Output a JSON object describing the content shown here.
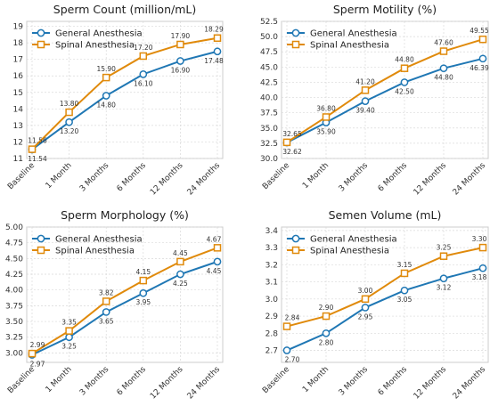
{
  "chart_data": [
    {
      "type": "line",
      "title": "Sperm Count (million/mL)",
      "xlabel": "",
      "ylabel": "",
      "categories": [
        "Baseline",
        "1 Month",
        "3 Months",
        "6 Months",
        "12 Months",
        "24 Months"
      ],
      "ylim": [
        11,
        19.3
      ],
      "yticks": [
        "11",
        "12",
        "13",
        "14",
        "15",
        "16",
        "17",
        "18",
        "19"
      ],
      "grid": true,
      "legend": "upper-left",
      "series": [
        {
          "name": "General Anesthesia",
          "color": "#1f77b4",
          "marker": "circle",
          "values": [
            11.54,
            13.2,
            14.8,
            16.1,
            16.9,
            17.48
          ],
          "labels": [
            "11.54",
            "13.20",
            "14.80",
            "16.10",
            "16.90",
            "17.48"
          ],
          "label_position": "below"
        },
        {
          "name": "Spinal Anesthesia",
          "color": "#e08a0b",
          "marker": "square",
          "values": [
            11.56,
            13.8,
            15.9,
            17.2,
            17.9,
            18.29
          ],
          "labels": [
            "11.56",
            "13.80",
            "15.90",
            "17.20",
            "17.90",
            "18.29"
          ],
          "label_position": "above"
        }
      ]
    },
    {
      "type": "line",
      "title": "Sperm Motility (%)",
      "xlabel": "",
      "ylabel": "",
      "categories": [
        "Baseline",
        "1 Month",
        "3 Months",
        "6 Months",
        "12 Months",
        "24 Months"
      ],
      "ylim": [
        30,
        52.5
      ],
      "yticks": [
        "30.0",
        "32.5",
        "35.0",
        "37.5",
        "40.0",
        "42.5",
        "45.0",
        "47.5",
        "50.0",
        "52.5"
      ],
      "grid": true,
      "legend": "upper-left",
      "series": [
        {
          "name": "General Anesthesia",
          "color": "#1f77b4",
          "marker": "circle",
          "values": [
            32.62,
            35.9,
            39.4,
            42.5,
            44.8,
            46.39
          ],
          "labels": [
            "32.62",
            "35.90",
            "39.40",
            "42.50",
            "44.80",
            "46.39"
          ],
          "label_position": "below"
        },
        {
          "name": "Spinal Anesthesia",
          "color": "#e08a0b",
          "marker": "square",
          "values": [
            32.65,
            36.8,
            41.2,
            44.8,
            47.6,
            49.55
          ],
          "labels": [
            "32.65",
            "36.80",
            "41.20",
            "44.80",
            "47.60",
            "49.55"
          ],
          "label_position": "above"
        }
      ]
    },
    {
      "type": "line",
      "title": "Sperm Morphology (%)",
      "xlabel": "",
      "ylabel": "",
      "categories": [
        "Baseline",
        "1 Month",
        "3 Months",
        "6 Months",
        "12 Months",
        "24 Months"
      ],
      "ylim": [
        2.85,
        5.0
      ],
      "yticks": [
        "3.00",
        "3.25",
        "3.50",
        "3.75",
        "4.00",
        "4.25",
        "4.50",
        "4.75",
        "5.00"
      ],
      "grid": true,
      "legend": "upper-left",
      "series": [
        {
          "name": "General Anesthesia",
          "color": "#1f77b4",
          "marker": "circle",
          "values": [
            2.97,
            3.25,
            3.65,
            3.95,
            4.25,
            4.45
          ],
          "labels": [
            "2.97",
            "3.25",
            "3.65",
            "3.95",
            "4.25",
            "4.45"
          ],
          "label_position": "below"
        },
        {
          "name": "Spinal Anesthesia",
          "color": "#e08a0b",
          "marker": "square",
          "values": [
            2.99,
            3.35,
            3.82,
            4.15,
            4.45,
            4.67
          ],
          "labels": [
            "2.99",
            "3.35",
            "3.82",
            "4.15",
            "4.45",
            "4.67"
          ],
          "label_position": "above"
        }
      ]
    },
    {
      "type": "line",
      "title": "Semen Volume (mL)",
      "xlabel": "",
      "ylabel": "",
      "categories": [
        "Baseline",
        "1 Month",
        "3 Months",
        "6 Months",
        "12 Months",
        "24 Months"
      ],
      "ylim": [
        2.63,
        3.42
      ],
      "yticks": [
        "2.7",
        "2.8",
        "2.9",
        "3.0",
        "3.1",
        "3.2",
        "3.3",
        "3.4"
      ],
      "grid": true,
      "legend": "upper-left",
      "series": [
        {
          "name": "General Anesthesia",
          "color": "#1f77b4",
          "marker": "circle",
          "values": [
            2.7,
            2.8,
            2.95,
            3.05,
            3.12,
            3.18
          ],
          "labels": [
            "2.70",
            "2.80",
            "2.95",
            "3.05",
            "3.12",
            "3.18"
          ],
          "label_position": "below"
        },
        {
          "name": "Spinal Anesthesia",
          "color": "#e08a0b",
          "marker": "square",
          "values": [
            2.84,
            2.9,
            3.0,
            3.15,
            3.25,
            3.3
          ],
          "labels": [
            "2.84",
            "2.90",
            "3.00",
            "3.15",
            "3.25",
            "3.30"
          ],
          "label_position": "above"
        }
      ]
    }
  ]
}
